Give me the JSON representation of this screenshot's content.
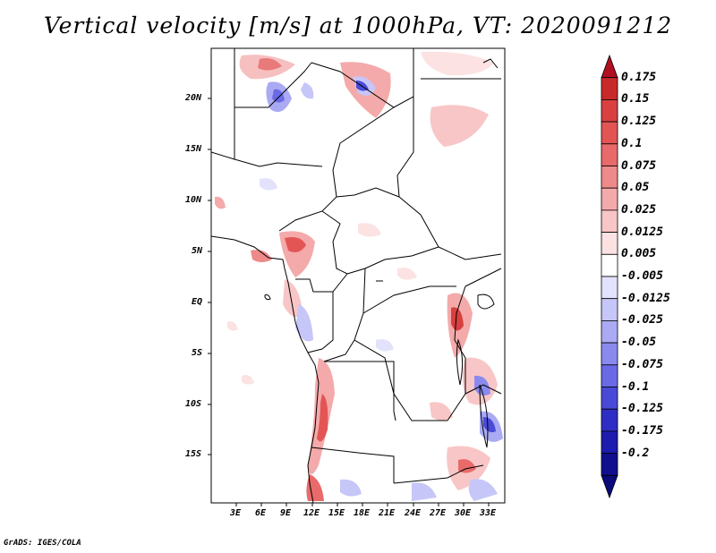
{
  "title": "Vertical velocity [m/s] at 1000hPa, VT: 2020091212",
  "credit": "GrADS: IGES/COLA",
  "map": {
    "lat_ticks": [
      "20N",
      "15N",
      "10N",
      "5N",
      "EQ",
      "5S",
      "10S",
      "15S"
    ],
    "lon_ticks": [
      "3E",
      "6E",
      "9E",
      "12E",
      "15E",
      "18E",
      "21E",
      "24E",
      "27E",
      "30E",
      "33E"
    ],
    "variable": "vertical velocity",
    "units": "m/s",
    "level": "1000hPa"
  },
  "colorbar": {
    "labels": [
      "0.175",
      "0.15",
      "0.125",
      "0.1",
      "0.075",
      "0.05",
      "0.025",
      "0.0125",
      "0.005",
      "-0.005",
      "-0.0125",
      "-0.025",
      "-0.05",
      "-0.075",
      "-0.1",
      "-0.125",
      "-0.175",
      "-0.2"
    ],
    "colors": [
      "#b01020",
      "#c82a2a",
      "#d94040",
      "#e35555",
      "#e86a6a",
      "#ee8a8a",
      "#f4aaaa",
      "#f8c6c6",
      "#fce2e2",
      "#ffffff",
      "#e2e2fc",
      "#c6c6f8",
      "#aaaaf4",
      "#8a8aee",
      "#6a6ae6",
      "#4a4ad8",
      "#2e2ec4",
      "#1c1cae",
      "#10108e",
      "#0a0a78"
    ]
  }
}
